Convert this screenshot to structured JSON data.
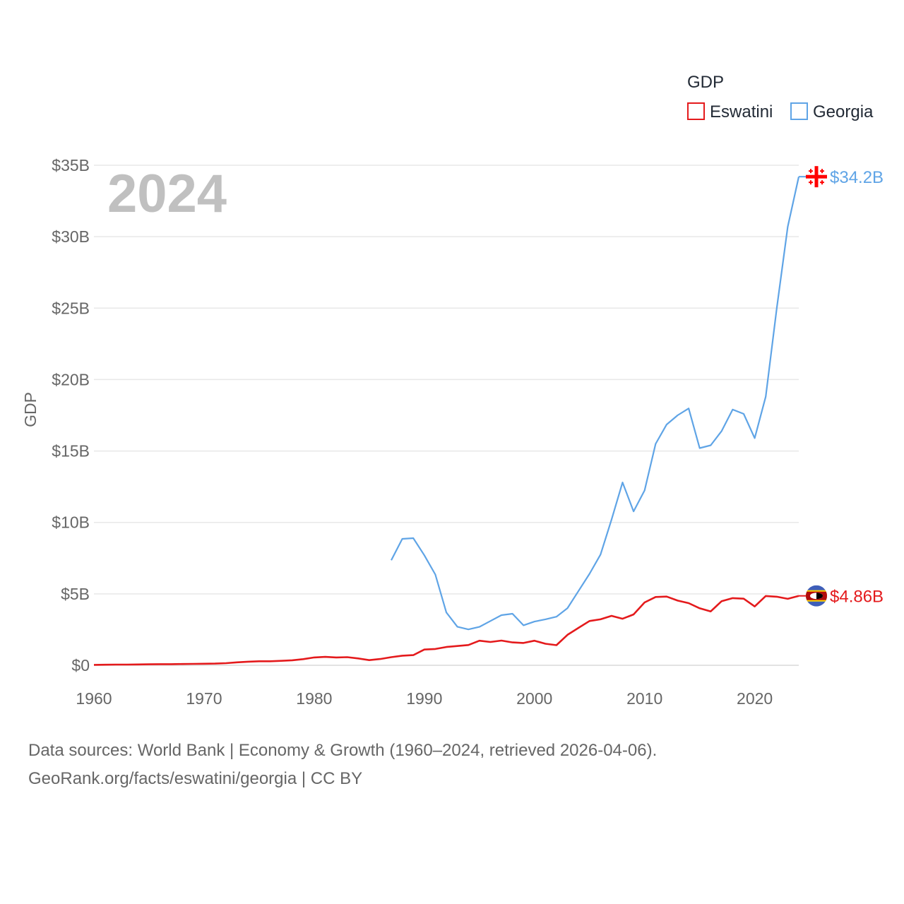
{
  "chart_data": {
    "type": "line",
    "ylabel": "GDP",
    "year_label": "2024",
    "xlim": [
      1960,
      2024
    ],
    "ylim": [
      0,
      35
    ],
    "x_ticks": [
      1960,
      1970,
      1980,
      1990,
      2000,
      2010,
      2020
    ],
    "y_ticks": [
      0,
      5,
      10,
      15,
      20,
      25,
      30,
      35
    ],
    "y_tick_labels": [
      "$0",
      "$5B",
      "$10B",
      "$15B",
      "$20B",
      "$25B",
      "$30B",
      "$35B"
    ],
    "legend": {
      "title": "GDP",
      "position": "top-right"
    },
    "grid": true,
    "series": [
      {
        "name": "Eswatini",
        "color": "#e41a1c",
        "flag": "eswatini-flag-icon",
        "end_label": "$4.86B",
        "x": [
          1960,
          1961,
          1962,
          1963,
          1964,
          1965,
          1966,
          1967,
          1968,
          1969,
          1970,
          1971,
          1972,
          1973,
          1974,
          1975,
          1976,
          1977,
          1978,
          1979,
          1980,
          1981,
          1982,
          1983,
          1984,
          1985,
          1986,
          1987,
          1988,
          1989,
          1990,
          1991,
          1992,
          1993,
          1994,
          1995,
          1996,
          1997,
          1998,
          1999,
          2000,
          2001,
          2002,
          2003,
          2004,
          2005,
          2006,
          2007,
          2008,
          2009,
          2010,
          2011,
          2012,
          2013,
          2014,
          2015,
          2016,
          2017,
          2018,
          2019,
          2020,
          2021,
          2022,
          2023,
          2024
        ],
        "values": [
          0.03,
          0.04,
          0.05,
          0.05,
          0.06,
          0.07,
          0.08,
          0.08,
          0.09,
          0.1,
          0.11,
          0.12,
          0.15,
          0.21,
          0.25,
          0.28,
          0.28,
          0.31,
          0.35,
          0.43,
          0.55,
          0.59,
          0.55,
          0.57,
          0.48,
          0.36,
          0.44,
          0.57,
          0.67,
          0.71,
          1.1,
          1.14,
          1.28,
          1.35,
          1.42,
          1.72,
          1.63,
          1.73,
          1.6,
          1.56,
          1.72,
          1.51,
          1.41,
          2.13,
          2.62,
          3.1,
          3.22,
          3.46,
          3.26,
          3.56,
          4.4,
          4.78,
          4.81,
          4.53,
          4.35,
          3.99,
          3.77,
          4.49,
          4.7,
          4.66,
          4.12,
          4.85,
          4.8,
          4.65,
          4.86
        ]
      },
      {
        "name": "Georgia",
        "color": "#5fa4e6",
        "flag": "georgia-flag-icon",
        "end_label": "$34.2B",
        "x": [
          1987,
          1988,
          1989,
          1990,
          1991,
          1992,
          1993,
          1994,
          1995,
          1996,
          1997,
          1998,
          1999,
          2000,
          2001,
          2002,
          2003,
          2004,
          2005,
          2006,
          2007,
          2008,
          2009,
          2010,
          2011,
          2012,
          2013,
          2014,
          2015,
          2016,
          2017,
          2018,
          2019,
          2020,
          2021,
          2022,
          2023,
          2024
        ],
        "values": [
          7.35,
          8.85,
          8.9,
          7.7,
          6.35,
          3.7,
          2.7,
          2.51,
          2.69,
          3.1,
          3.51,
          3.61,
          2.8,
          3.06,
          3.22,
          3.4,
          4.0,
          5.2,
          6.4,
          7.75,
          10.2,
          12.8,
          10.77,
          12.24,
          15.5,
          16.85,
          17.5,
          17.98,
          15.2,
          15.4,
          16.4,
          17.9,
          17.6,
          15.9,
          18.8,
          24.98,
          30.7,
          34.2
        ]
      }
    ]
  },
  "source": {
    "line1": "Data sources: World Bank | Economy & Growth (1960–2024, retrieved 2026-04-06).",
    "line2": "GeoRank.org/facts/eswatini/georgia | CC BY"
  }
}
